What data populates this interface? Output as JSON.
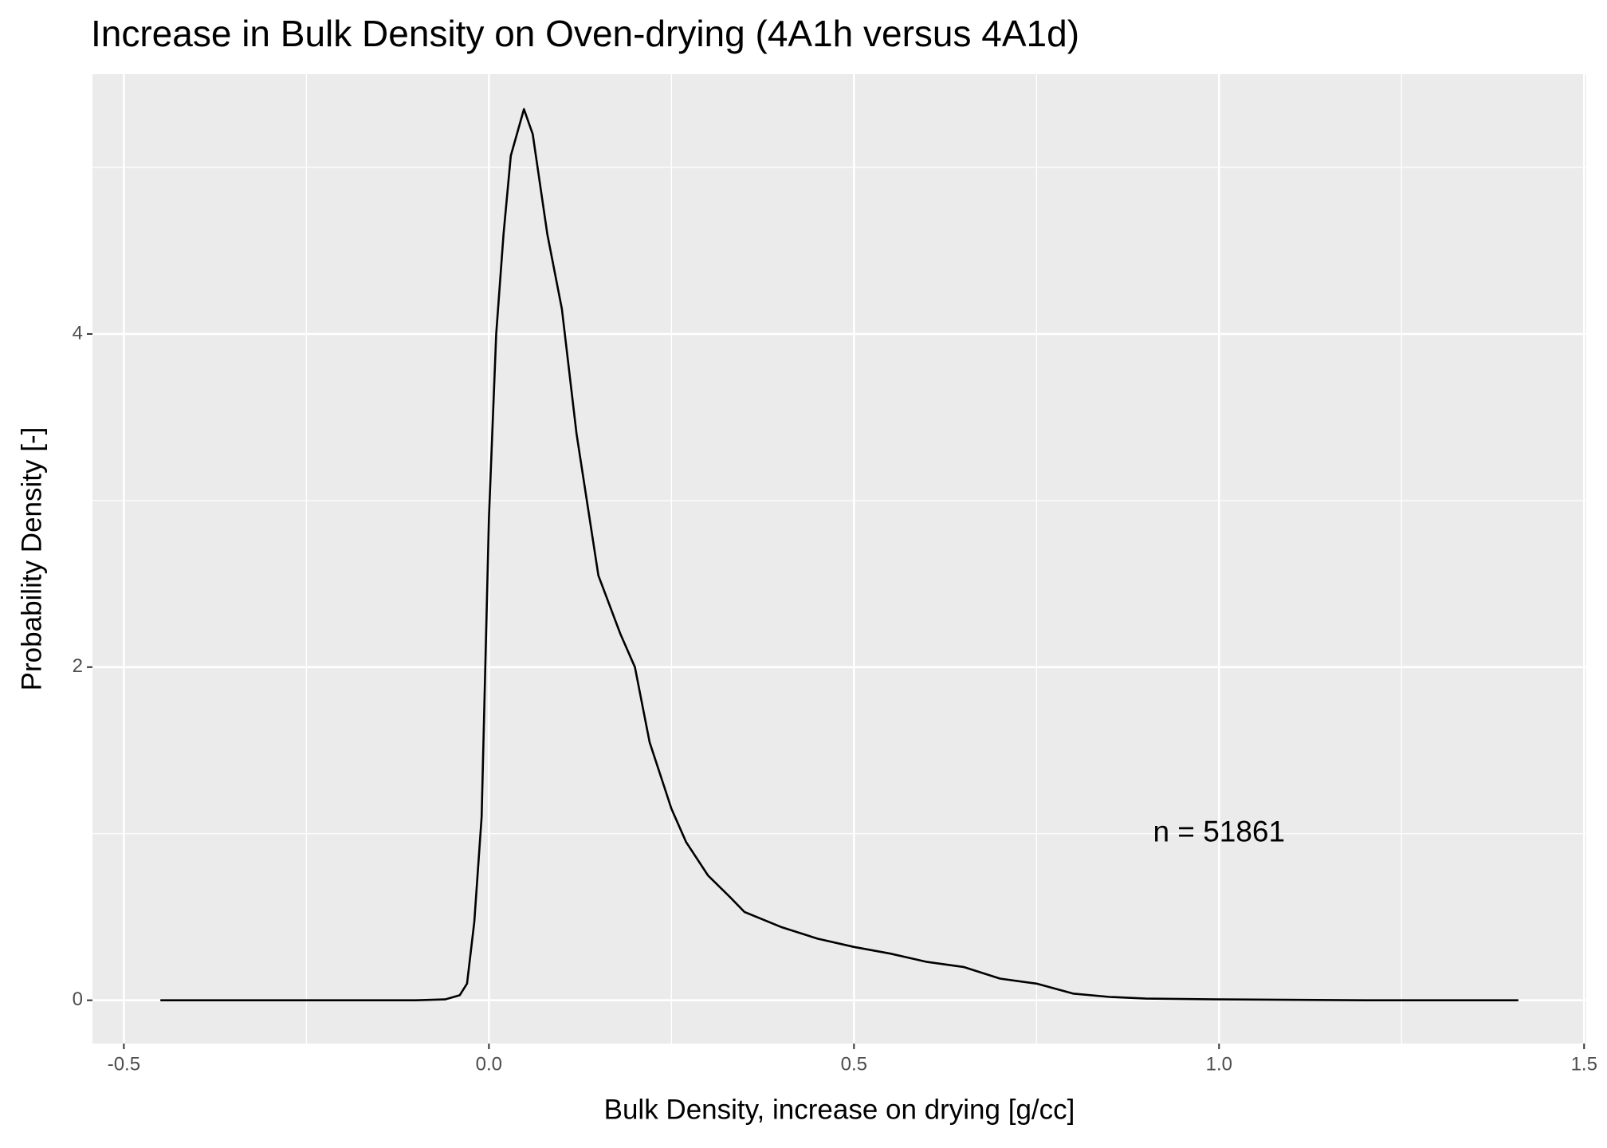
{
  "chart_data": {
    "type": "line",
    "title": "Increase in Bulk Density on Oven-drying (4A1h versus 4A1d)",
    "x_label": "Bulk Density, increase on drying [g/cc]",
    "y_label": "Probability Density [-]",
    "x": [
      -0.45,
      -0.2,
      -0.1,
      -0.06,
      -0.04,
      -0.03,
      -0.02,
      -0.01,
      0.0,
      0.01,
      0.02,
      0.03,
      0.048,
      0.06,
      0.08,
      0.1,
      0.12,
      0.15,
      0.18,
      0.2,
      0.22,
      0.25,
      0.27,
      0.3,
      0.33,
      0.35,
      0.4,
      0.45,
      0.5,
      0.55,
      0.6,
      0.65,
      0.7,
      0.75,
      0.8,
      0.85,
      0.9,
      1.0,
      1.2,
      1.41
    ],
    "series": [
      {
        "name": "density",
        "color": "#000000",
        "values": [
          0,
          0,
          0,
          0.005,
          0.03,
          0.1,
          0.47,
          1.1,
          2.9,
          4.0,
          4.6,
          5.07,
          5.35,
          5.2,
          4.6,
          4.15,
          3.4,
          2.55,
          2.2,
          2.0,
          1.55,
          1.15,
          0.95,
          0.75,
          0.62,
          0.53,
          0.44,
          0.37,
          0.32,
          0.28,
          0.23,
          0.2,
          0.13,
          0.1,
          0.04,
          0.02,
          0.01,
          0.005,
          0,
          0
        ]
      }
    ],
    "annotation": {
      "text": "n = 51861",
      "x": 1.0,
      "y": 1.0
    },
    "xlim": [
      -0.543,
      1.503
    ],
    "ylim": [
      -0.26,
      5.56
    ],
    "xticks": [
      -0.5,
      {
        "value": 0,
        "label": "0.0"
      },
      0.5,
      {
        "value": 1,
        "label": "1.0"
      },
      1.5
    ],
    "yticks": [
      0,
      2,
      4
    ],
    "grid": true
  }
}
